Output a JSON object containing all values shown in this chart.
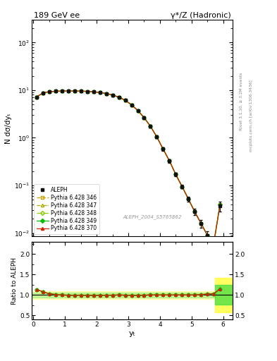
{
  "title_left": "189 GeV ee",
  "title_right": "γ*/Z (Hadronic)",
  "ylabel_main": "N dσ/dyₜ",
  "ylabel_ratio": "Ratio to ALEPH",
  "xlabel": "yₜ",
  "right_label_top": "Rivet 3.1.10, ≥ 3.2M events",
  "right_label_bot": "mcplots.cern.ch [arXiv:1306.3436]",
  "watermark": "ALEPH_2004_S5765862",
  "ylim_main": [
    0.0085,
    300
  ],
  "ylim_ratio": [
    0.4,
    2.3
  ],
  "xlim": [
    -0.05,
    6.3
  ],
  "data_x": [
    0.1,
    0.3,
    0.5,
    0.7,
    0.9,
    1.1,
    1.3,
    1.5,
    1.7,
    1.9,
    2.1,
    2.3,
    2.5,
    2.7,
    2.9,
    3.1,
    3.3,
    3.5,
    3.7,
    3.9,
    4.1,
    4.3,
    4.5,
    4.7,
    4.9,
    5.1,
    5.3,
    5.5,
    5.7,
    5.9
  ],
  "data_y": [
    7.2,
    8.8,
    9.3,
    9.5,
    9.6,
    9.65,
    9.6,
    9.55,
    9.45,
    9.25,
    8.95,
    8.55,
    7.95,
    7.15,
    6.15,
    4.95,
    3.75,
    2.65,
    1.75,
    1.05,
    0.58,
    0.33,
    0.17,
    0.095,
    0.052,
    0.028,
    0.016,
    0.009,
    0.006,
    0.037
  ],
  "data_yerr_lo": [
    0.4,
    0.3,
    0.25,
    0.2,
    0.2,
    0.2,
    0.2,
    0.2,
    0.2,
    0.2,
    0.2,
    0.2,
    0.18,
    0.18,
    0.18,
    0.18,
    0.14,
    0.13,
    0.1,
    0.07,
    0.045,
    0.027,
    0.015,
    0.009,
    0.006,
    0.004,
    0.003,
    0.002,
    0.001,
    0.009
  ],
  "data_yerr_hi": [
    0.4,
    0.3,
    0.25,
    0.2,
    0.2,
    0.2,
    0.2,
    0.2,
    0.2,
    0.2,
    0.2,
    0.2,
    0.18,
    0.18,
    0.18,
    0.18,
    0.14,
    0.13,
    0.1,
    0.07,
    0.045,
    0.027,
    0.015,
    0.009,
    0.006,
    0.004,
    0.003,
    0.002,
    0.001,
    0.009
  ],
  "mc_y_349": [
    7.2,
    8.8,
    9.3,
    9.5,
    9.6,
    9.65,
    9.6,
    9.55,
    9.45,
    9.25,
    8.95,
    8.55,
    7.95,
    7.15,
    6.15,
    4.95,
    3.75,
    2.65,
    1.75,
    1.05,
    0.58,
    0.33,
    0.17,
    0.095,
    0.052,
    0.028,
    0.016,
    0.009,
    0.006,
    0.04
  ],
  "mc_y_370": [
    7.2,
    8.8,
    9.3,
    9.5,
    9.6,
    9.65,
    9.6,
    9.55,
    9.45,
    9.25,
    8.95,
    8.55,
    7.95,
    7.15,
    6.15,
    4.95,
    3.75,
    2.65,
    1.75,
    1.05,
    0.58,
    0.33,
    0.17,
    0.095,
    0.052,
    0.028,
    0.016,
    0.009,
    0.006,
    0.04
  ],
  "mc_y_346": [
    7.2,
    8.8,
    9.3,
    9.5,
    9.6,
    9.65,
    9.6,
    9.55,
    9.45,
    9.25,
    8.95,
    8.55,
    7.95,
    7.15,
    6.15,
    4.95,
    3.75,
    2.65,
    1.75,
    1.05,
    0.58,
    0.33,
    0.17,
    0.095,
    0.052,
    0.028,
    0.016,
    0.009,
    0.006,
    0.04
  ],
  "mc_y_347": [
    7.2,
    8.8,
    9.3,
    9.5,
    9.6,
    9.65,
    9.6,
    9.55,
    9.45,
    9.25,
    8.95,
    8.55,
    7.95,
    7.15,
    6.15,
    4.95,
    3.75,
    2.65,
    1.75,
    1.05,
    0.58,
    0.33,
    0.17,
    0.095,
    0.052,
    0.028,
    0.016,
    0.009,
    0.006,
    0.04
  ],
  "mc_y_348": [
    7.2,
    8.8,
    9.3,
    9.5,
    9.6,
    9.65,
    9.6,
    9.55,
    9.45,
    9.25,
    8.95,
    8.55,
    7.95,
    7.15,
    6.15,
    4.95,
    3.75,
    2.65,
    1.75,
    1.05,
    0.58,
    0.33,
    0.17,
    0.095,
    0.052,
    0.028,
    0.016,
    0.009,
    0.006,
    0.04
  ],
  "ratio_349": [
    1.13,
    1.08,
    1.03,
    1.01,
    1.0,
    0.995,
    0.99,
    0.995,
    0.99,
    0.99,
    0.99,
    0.995,
    0.995,
    1.0,
    0.995,
    0.99,
    0.99,
    0.995,
    1.0,
    1.0,
    1.0,
    1.0,
    1.0,
    1.0,
    1.0,
    1.0,
    1.01,
    1.02,
    1.03,
    1.15
  ],
  "ratio_370": [
    1.13,
    1.08,
    1.03,
    1.01,
    1.0,
    0.995,
    0.99,
    0.995,
    0.99,
    0.99,
    0.99,
    0.995,
    0.995,
    1.0,
    0.995,
    0.99,
    0.99,
    0.995,
    1.0,
    1.0,
    1.0,
    1.0,
    1.0,
    1.0,
    1.0,
    1.0,
    1.01,
    1.02,
    1.03,
    1.15
  ],
  "ratio_346": [
    1.13,
    1.08,
    1.03,
    1.01,
    1.0,
    0.995,
    0.99,
    0.995,
    0.99,
    0.99,
    0.99,
    0.995,
    0.995,
    1.0,
    0.995,
    0.99,
    0.99,
    0.995,
    1.0,
    1.0,
    1.0,
    1.0,
    1.0,
    1.0,
    1.0,
    1.0,
    1.01,
    1.02,
    1.03,
    1.15
  ],
  "ratio_347": [
    1.13,
    1.08,
    1.03,
    1.01,
    1.0,
    0.995,
    0.99,
    0.995,
    0.99,
    0.99,
    0.99,
    0.995,
    0.995,
    1.0,
    0.995,
    0.99,
    0.99,
    0.995,
    1.0,
    1.0,
    1.0,
    1.0,
    1.0,
    1.0,
    1.0,
    1.0,
    1.01,
    1.02,
    1.03,
    1.15
  ],
  "ratio_348": [
    1.13,
    1.08,
    1.03,
    1.01,
    1.0,
    0.995,
    0.99,
    0.995,
    0.99,
    0.99,
    0.99,
    0.995,
    0.995,
    1.0,
    0.995,
    0.99,
    0.99,
    0.995,
    1.0,
    1.0,
    1.0,
    1.0,
    1.0,
    1.0,
    1.0,
    1.0,
    1.01,
    1.02,
    1.03,
    1.15
  ],
  "color_346": "#c8a000",
  "color_347": "#aaaa00",
  "color_348": "#88cc00",
  "color_349": "#00bb00",
  "color_370": "#cc2200",
  "color_data": "#111111",
  "band_yellow": "#ffff44",
  "band_green": "#44dd44",
  "legend_entries": [
    "ALEPH",
    "Pythia 6.428 346",
    "Pythia 6.428 347",
    "Pythia 6.428 348",
    "Pythia 6.428 349",
    "Pythia 6.428 370"
  ]
}
